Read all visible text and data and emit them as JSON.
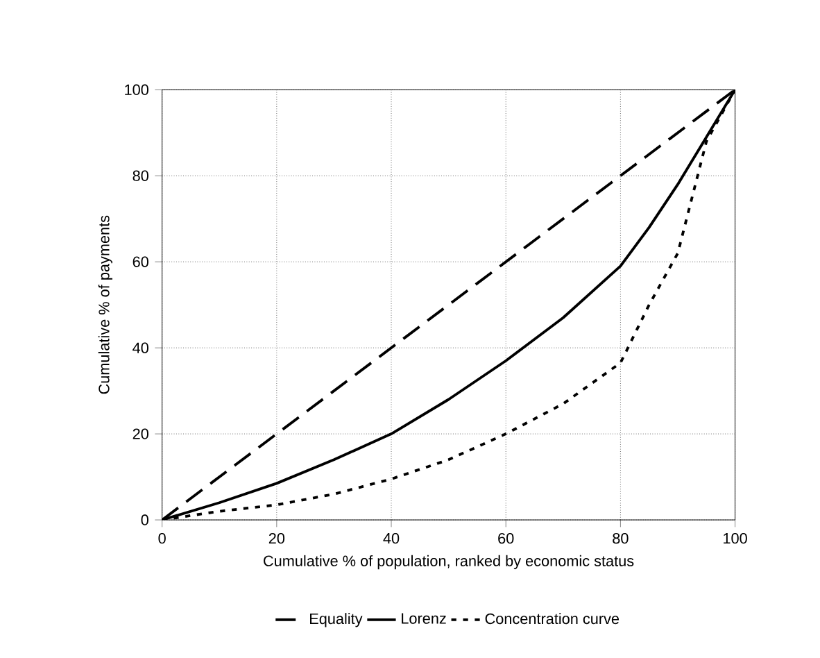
{
  "chart_data": {
    "type": "line",
    "xlabel": "Cumulative % of population, ranked by economic status",
    "ylabel": "Cumulative % of payments",
    "xlim": [
      0,
      100
    ],
    "ylim": [
      0,
      100
    ],
    "xticks": [
      0,
      20,
      40,
      60,
      80,
      100
    ],
    "yticks": [
      0,
      20,
      40,
      60,
      80,
      100
    ],
    "grid": true,
    "legend": "bottom",
    "marker": "none",
    "series": [
      {
        "name": "Equality",
        "color": "#000000",
        "line_style": "dashed",
        "x": [
          0,
          20,
          40,
          60,
          80,
          100
        ],
        "values": [
          0,
          20,
          40,
          60,
          80,
          100
        ]
      },
      {
        "name": "Lorenz",
        "color": "#000000",
        "line_style": "solid",
        "x": [
          0,
          10,
          20,
          30,
          40,
          50,
          60,
          70,
          80,
          85,
          90,
          95,
          100
        ],
        "values": [
          0,
          4,
          8.5,
          14,
          20,
          28,
          37,
          47,
          59,
          68,
          78,
          89,
          100
        ]
      },
      {
        "name": "Concentration curve",
        "color": "#000000",
        "line_style": "dotted",
        "x": [
          0,
          10,
          20,
          30,
          40,
          50,
          60,
          70,
          80,
          85,
          90,
          95,
          100
        ],
        "values": [
          0,
          2,
          3.5,
          6,
          9.5,
          14,
          20,
          27,
          36.5,
          50,
          62,
          88,
          100
        ]
      }
    ]
  }
}
